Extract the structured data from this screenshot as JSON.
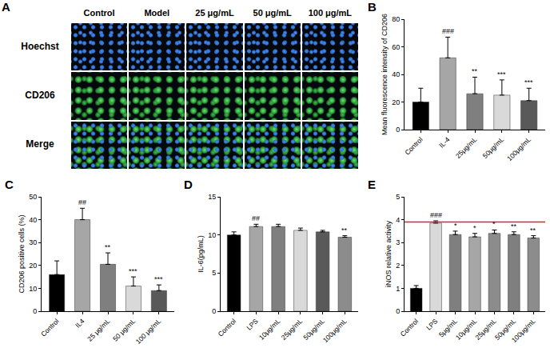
{
  "chart_data": [
    {
      "type": "image_grid",
      "panel": "A",
      "columns": [
        "Control",
        "Model",
        "25 μg/mL",
        "50 μg/mL",
        "100 μg/mL"
      ],
      "rows": [
        "Hoechst",
        "CD206",
        "Merge"
      ]
    },
    {
      "type": "bar",
      "panel": "B",
      "y_label": "Mean fluorescence intensity of CD206",
      "categories": [
        "Control",
        "IL-4",
        "25μg/mL",
        "50μg/mL",
        "100μg/mL"
      ],
      "values": [
        20,
        52,
        26,
        25,
        21
      ],
      "errors": [
        10,
        15,
        12,
        11,
        9
      ],
      "significance": [
        null,
        "###",
        "**",
        "***",
        "***"
      ],
      "colors": [
        "#000000",
        "#a6a6a6",
        "#7f7f7f",
        "#d9d9d9",
        "#595959"
      ],
      "ylim": [
        0,
        80
      ],
      "yticks": [
        0,
        20,
        40,
        60,
        80
      ]
    },
    {
      "type": "bar",
      "panel": "C",
      "y_label": "CD206 positive cells (%)",
      "categories": [
        "Control",
        "IL4",
        "25 μg/mL",
        "50 μg/mL",
        "100 μg/mL"
      ],
      "values": [
        16,
        40,
        20.5,
        11,
        9
      ],
      "errors": [
        6,
        5,
        5,
        4,
        2.5
      ],
      "significance": [
        null,
        "##",
        "**",
        "***",
        "***"
      ],
      "colors": [
        "#000000",
        "#a6a6a6",
        "#7f7f7f",
        "#d9d9d9",
        "#595959"
      ],
      "ylim": [
        0,
        50
      ],
      "yticks": [
        0,
        10,
        20,
        30,
        40,
        50
      ]
    },
    {
      "type": "bar",
      "panel": "D",
      "y_label": "IL-6(pg/mL)",
      "categories": [
        "Control",
        "LPS",
        "10μg/mL",
        "25μg/mL",
        "50μg/mL",
        "100μg/mL"
      ],
      "values": [
        10,
        11.1,
        11.1,
        10.6,
        10.4,
        9.7
      ],
      "errors": [
        0.4,
        0.3,
        0.3,
        0.3,
        0.2,
        0.2
      ],
      "significance": [
        null,
        "##",
        null,
        null,
        null,
        "**"
      ],
      "colors": [
        "#000000",
        "#a6a6a6",
        "#7f7f7f",
        "#d9d9d9",
        "#595959",
        "#8c8c8c"
      ],
      "ylim": [
        0,
        15
      ],
      "yticks": [
        0,
        5,
        10,
        15
      ]
    },
    {
      "type": "bar",
      "panel": "E",
      "y_label": "iNOS relative activity",
      "categories": [
        "Control",
        "LPS",
        "5μg/mL",
        "10μg/mL",
        "25μg/mL",
        "50μg/mL",
        "100μg/mL"
      ],
      "values": [
        1.0,
        3.85,
        3.35,
        3.25,
        3.4,
        3.35,
        3.2
      ],
      "errors": [
        0.12,
        0.1,
        0.15,
        0.15,
        0.15,
        0.12,
        0.1
      ],
      "significance": [
        null,
        "###",
        "*",
        "*",
        "*",
        "**",
        "**"
      ],
      "colors": [
        "#000000",
        "#d9d9d9",
        "#7f7f7f",
        "#a6a6a6",
        "#8c8c8c",
        "#7f7f7f",
        "#8c8c8c"
      ],
      "reference_line": {
        "value": 3.9,
        "color": "#e0202a"
      },
      "ylim": [
        0,
        5
      ],
      "yticks": [
        0,
        1,
        2,
        3,
        4,
        5
      ]
    }
  ]
}
